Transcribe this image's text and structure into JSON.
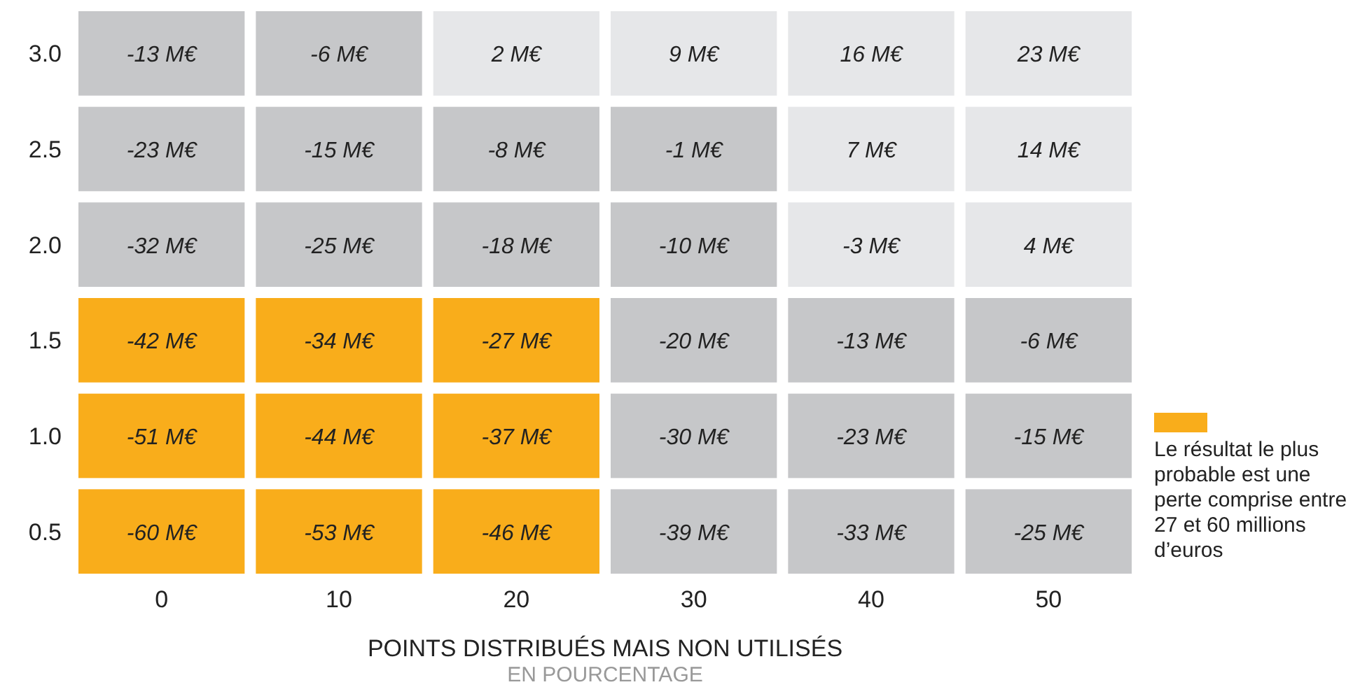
{
  "chart_data": {
    "type": "heatmap",
    "xlabel": "POINTS DISTRIBUÉS MAIS NON UTILISÉS",
    "categories": [
      "0",
      "10",
      "20",
      "30",
      "40",
      "50"
    ],
    "y_categories": [
      "3.0",
      "2.5",
      "2.0",
      "1.5",
      "1.0",
      "0.5"
    ],
    "cells": [
      [
        -13,
        -6,
        2,
        9,
        16,
        23
      ],
      [
        -23,
        -15,
        -8,
        -1,
        7,
        14
      ],
      [
        -32,
        -25,
        -18,
        -10,
        -3,
        4
      ],
      [
        -42,
        -34,
        -27,
        -20,
        -13,
        -6
      ],
      [
        -51,
        -44,
        -37,
        -30,
        -23,
        -15
      ],
      [
        -60,
        -53,
        -46,
        -39,
        -33,
        -25
      ]
    ],
    "cell_labels": [
      [
        "-13 M€",
        "-6 M€",
        "2 M€",
        "9 M€",
        "16 M€",
        "23 M€"
      ],
      [
        "-23 M€",
        "-15 M€",
        "-8 M€",
        "-1 M€",
        "7 M€",
        "14 M€"
      ],
      [
        "-32 M€",
        "-25 M€",
        "-18 M€",
        "-10 M€",
        "-3 M€",
        "4 M€"
      ],
      [
        "-42 M€",
        "-34 M€",
        "-27 M€",
        "-20 M€",
        "-13 M€",
        "-6 M€"
      ],
      [
        "-51 M€",
        "-44 M€",
        "-37 M€",
        "-30 M€",
        "-23 M€",
        "-15 M€"
      ],
      [
        "-60 M€",
        "-53 M€",
        "-46 M€",
        "-39 M€",
        "-33 M€",
        "-25 M€"
      ]
    ],
    "colors": [
      [
        "#c6c7c9",
        "#c6c7c9",
        "#e6e7e9",
        "#e6e7e9",
        "#e6e7e9",
        "#e6e7e9"
      ],
      [
        "#c6c7c9",
        "#c6c7c9",
        "#c6c7c9",
        "#c6c7c9",
        "#e6e7e9",
        "#e6e7e9"
      ],
      [
        "#c6c7c9",
        "#c6c7c9",
        "#c6c7c9",
        "#c6c7c9",
        "#e6e7e9",
        "#e6e7e9"
      ],
      [
        "#f9ad1b",
        "#f9ad1b",
        "#f9ad1b",
        "#c6c7c9",
        "#c6c7c9",
        "#c6c7c9"
      ],
      [
        "#f9ad1b",
        "#f9ad1b",
        "#f9ad1b",
        "#c6c7c9",
        "#c6c7c9",
        "#c6c7c9"
      ],
      [
        "#f9ad1b",
        "#f9ad1b",
        "#f9ad1b",
        "#c6c7c9",
        "#c6c7c9",
        "#c6c7c9"
      ]
    ],
    "legend_title": "Le résultat le plus probable est une perte comprise entre 27 et 60 millions d’euros",
    "annotations": [
      "EN POURCENTAGE"
    ]
  }
}
